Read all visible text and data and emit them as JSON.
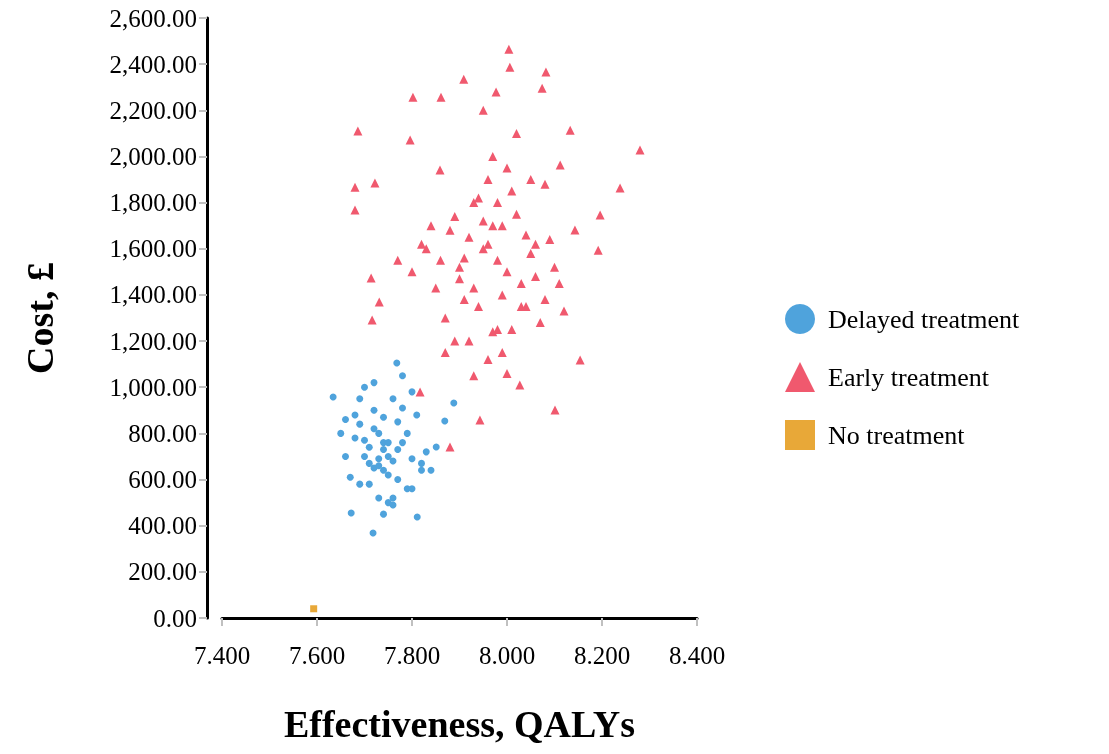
{
  "chart_data": {
    "type": "scatter",
    "xlabel": "Effectiveness, QALYs",
    "ylabel": "Cost, £",
    "xlim": [
      7.4,
      8.4
    ],
    "ylim": [
      0,
      2600
    ],
    "xticks": [
      {
        "value": 7.4,
        "label": "7.400"
      },
      {
        "value": 7.6,
        "label": "7.600"
      },
      {
        "value": 7.8,
        "label": "7.800"
      },
      {
        "value": 8.0,
        "label": "8.000"
      },
      {
        "value": 8.2,
        "label": "8.200"
      },
      {
        "value": 8.4,
        "label": "8.400"
      }
    ],
    "yticks": [
      {
        "value": 0,
        "label": "0.00"
      },
      {
        "value": 200,
        "label": "200.00"
      },
      {
        "value": 400,
        "label": "400.00"
      },
      {
        "value": 600,
        "label": "600.00"
      },
      {
        "value": 800,
        "label": "800.00"
      },
      {
        "value": 1000,
        "label": "1,000.00"
      },
      {
        "value": 1200,
        "label": "1,200.00"
      },
      {
        "value": 1400,
        "label": "1,400.00"
      },
      {
        "value": 1600,
        "label": "1,600.00"
      },
      {
        "value": 1800,
        "label": "1,800.00"
      },
      {
        "value": 2000,
        "label": "2,000.00"
      },
      {
        "value": 2200,
        "label": "2,200.00"
      },
      {
        "value": 2400,
        "label": "2,400.00"
      },
      {
        "value": 2600,
        "label": "2,600.00"
      }
    ],
    "grid": false,
    "legend": "right",
    "series": [
      {
        "name": "Delayed treatment",
        "color": "#4fa3dc",
        "marker": "circle",
        "x": [
          7.718,
          7.768,
          7.634,
          7.888,
          7.869,
          7.851,
          7.672,
          7.811,
          7.7,
          7.72,
          7.74,
          7.76,
          7.78,
          7.8,
          7.73,
          7.75,
          7.71,
          7.69,
          7.77,
          7.79,
          7.82,
          7.68,
          7.66,
          7.74,
          7.72,
          7.76,
          7.7,
          7.78,
          7.73,
          7.75,
          7.81,
          7.67,
          7.71,
          7.77,
          7.74,
          7.69,
          7.8,
          7.83,
          7.66,
          7.72,
          7.76,
          7.74,
          7.7,
          7.78,
          7.75,
          7.73,
          7.79,
          7.71,
          7.68,
          7.82,
          7.74,
          7.76,
          7.72,
          7.77,
          7.69,
          7.8,
          7.65,
          7.84,
          7.73,
          7.75
        ],
        "values": [
          368,
          1105,
          958,
          932,
          854,
          741,
          455,
          438,
          700,
          650,
          870,
          680,
          760,
          690,
          800,
          620,
          740,
          580,
          850,
          560,
          640,
          780,
          700,
          730,
          900,
          950,
          1000,
          1050,
          520,
          500,
          880,
          610,
          670,
          600,
          760,
          840,
          980,
          720,
          860,
          1020,
          520,
          640,
          770,
          910,
          700,
          690,
          800,
          580,
          880,
          670,
          450,
          490,
          820,
          730,
          950,
          560,
          800,
          640,
          660,
          760
        ]
      },
      {
        "name": "Early treatment",
        "color": "#f0596e",
        "marker": "triangle",
        "x": [
          8.004,
          8.006,
          8.082,
          7.909,
          7.861,
          7.802,
          7.977,
          8.074,
          7.686,
          8.28,
          8.238,
          7.68,
          7.68,
          7.722,
          8.196,
          8.192,
          7.714,
          7.731,
          7.716,
          8.101,
          8.027,
          7.88,
          7.943,
          7.817,
          8.154,
          8.143,
          8.133,
          8.112,
          7.796,
          7.859,
          7.98,
          7.95,
          8.0,
          7.92,
          8.03,
          7.97,
          7.99,
          8.05,
          7.9,
          7.94,
          8.02,
          7.96,
          8.06,
          7.88,
          7.93,
          8.08,
          7.98,
          7.91,
          8.01,
          7.85,
          8.1,
          7.96,
          7.87,
          8.04,
          7.92,
          8.0,
          7.95,
          8.07,
          7.83,
          7.99,
          7.94,
          8.03,
          7.9,
          7.97,
          8.09,
          7.86,
          8.01,
          7.93,
          8.05,
          7.89,
          7.98,
          8.11,
          7.84,
          7.96,
          8.02,
          7.91,
          8.0,
          7.8,
          7.95,
          8.06,
          7.87,
          8.04,
          7.99,
          7.82,
          8.12,
          7.77,
          7.93,
          8.08,
          7.97,
          7.89
        ],
        "values": [
          2465,
          2387,
          2366,
          2335,
          2257,
          2257,
          2279,
          2296,
          2110,
          2028,
          1863,
          1867,
          1768,
          1885,
          1746,
          1594,
          1473,
          1369,
          1291,
          901,
          1010,
          741,
          858,
          979,
          1118,
          1681,
          2114,
          1963,
          2071,
          1941,
          1550,
          1600,
          1500,
          1650,
          1450,
          1700,
          1400,
          1580,
          1520,
          1350,
          1750,
          1620,
          1480,
          1680,
          1800,
          1380,
          1250,
          1560,
          1850,
          1430,
          1520,
          1900,
          1300,
          1660,
          1200,
          1950,
          1720,
          1280,
          1600,
          1150,
          1820,
          1350,
          1470,
          2000,
          1640,
          1550,
          1250,
          1430,
          1900,
          1200,
          1800,
          1450,
          1700,
          1120,
          2100,
          1380,
          1060,
          1500,
          2200,
          1620,
          1150,
          1350,
          1700,
          1620,
          1330,
          1550,
          1050,
          1880,
          1240,
          1740
        ]
      },
      {
        "name": "No treatment",
        "color": "#e8a838",
        "marker": "square",
        "x": [
          7.593
        ],
        "values": [
          40
        ]
      }
    ]
  }
}
